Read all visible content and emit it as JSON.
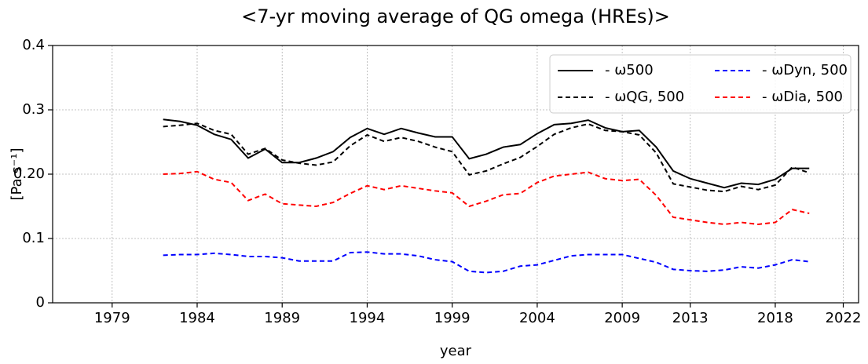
{
  "chart_data": {
    "type": "line",
    "title": "<7-yr moving average of QG omega (HREs)>",
    "x_label": "year",
    "y_label": "[Pa s⁻¹]",
    "x": [
      1982,
      1983,
      1984,
      1985,
      1986,
      1987,
      1988,
      1989,
      1990,
      1991,
      1992,
      1993,
      1994,
      1995,
      1996,
      1997,
      1998,
      1999,
      2000,
      2001,
      2002,
      2003,
      2004,
      2005,
      2006,
      2007,
      2008,
      2009,
      2010,
      2011,
      2012,
      2013,
      2014,
      2015,
      2016,
      2017,
      2018,
      2019,
      2020
    ],
    "series": [
      {
        "name": "- ω500",
        "color": "#000000",
        "dash": false,
        "values": [
          0.285,
          0.282,
          0.276,
          0.262,
          0.254,
          0.225,
          0.239,
          0.218,
          0.218,
          0.225,
          0.235,
          0.257,
          0.271,
          0.262,
          0.271,
          0.264,
          0.258,
          0.258,
          0.224,
          0.231,
          0.242,
          0.246,
          0.263,
          0.277,
          0.279,
          0.284,
          0.272,
          0.266,
          0.268,
          0.242,
          0.205,
          0.193,
          0.186,
          0.179,
          0.186,
          0.184,
          0.192,
          0.209,
          0.209
        ]
      },
      {
        "name": "- ωQG, 500",
        "color": "#000000",
        "dash": true,
        "values": [
          0.274,
          0.276,
          0.279,
          0.268,
          0.262,
          0.231,
          0.24,
          0.222,
          0.217,
          0.214,
          0.219,
          0.244,
          0.261,
          0.251,
          0.257,
          0.251,
          0.242,
          0.235,
          0.199,
          0.205,
          0.216,
          0.226,
          0.243,
          0.262,
          0.272,
          0.278,
          0.268,
          0.266,
          0.261,
          0.233,
          0.185,
          0.18,
          0.175,
          0.173,
          0.181,
          0.176,
          0.183,
          0.211,
          0.202
        ]
      },
      {
        "name": "- ωDyn, 500",
        "color": "#0000ff",
        "dash": true,
        "values": [
          0.074,
          0.075,
          0.075,
          0.077,
          0.075,
          0.072,
          0.072,
          0.07,
          0.065,
          0.065,
          0.065,
          0.078,
          0.079,
          0.076,
          0.076,
          0.073,
          0.067,
          0.064,
          0.049,
          0.047,
          0.049,
          0.057,
          0.059,
          0.066,
          0.073,
          0.075,
          0.075,
          0.075,
          0.069,
          0.063,
          0.052,
          0.05,
          0.049,
          0.051,
          0.056,
          0.054,
          0.059,
          0.067,
          0.064
        ]
      },
      {
        "name": "- ωDia, 500",
        "color": "#ff0000",
        "dash": true,
        "values": [
          0.2,
          0.201,
          0.204,
          0.192,
          0.187,
          0.159,
          0.169,
          0.154,
          0.152,
          0.15,
          0.156,
          0.17,
          0.182,
          0.176,
          0.182,
          0.178,
          0.174,
          0.171,
          0.15,
          0.158,
          0.168,
          0.17,
          0.187,
          0.197,
          0.2,
          0.203,
          0.193,
          0.19,
          0.192,
          0.167,
          0.133,
          0.129,
          0.125,
          0.122,
          0.125,
          0.122,
          0.125,
          0.145,
          0.139
        ]
      }
    ],
    "xlim": [
      1975.5,
      2022.9
    ],
    "xticks": [
      1979,
      1984,
      1989,
      1994,
      1999,
      2004,
      2009,
      2013,
      2018,
      2022
    ],
    "ylim": [
      0,
      0.4
    ],
    "yticks": [
      0,
      0.1,
      {
        "value": 0.2,
        "label": "0.20"
      },
      0.3,
      0.4
    ],
    "grid": true,
    "legend": "upper right"
  }
}
